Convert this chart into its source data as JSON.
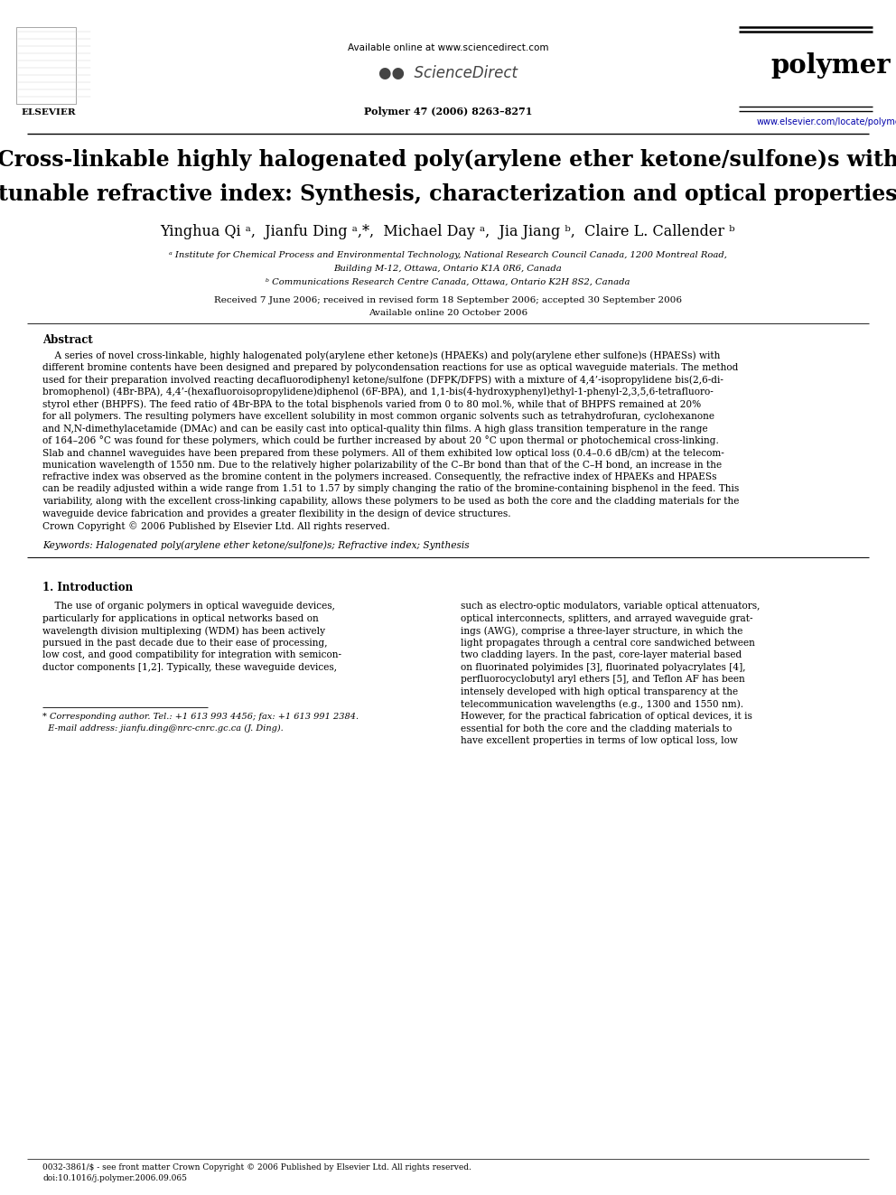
{
  "bg_color": "#ffffff",
  "fig_w": 9.92,
  "fig_h": 13.23,
  "dpi": 100,
  "header_available": "Available online at www.sciencedirect.com",
  "header_sciencedirect": "ScienceDirect",
  "header_journal": "polymer",
  "header_issue": "Polymer 47 (2006) 8263–8271",
  "header_url": "www.elsevier.com/locate/polymer",
  "elsevier_text": "ELSEVIER",
  "title_line1": "Cross-linkable highly halogenated poly(arylene ether ketone/sulfone)s with",
  "title_line2": "tunable refractive index: Synthesis, characterization and optical properties",
  "authors": "Yinghua Qi ᵃ,  Jianfu Ding ᵃ,*,  Michael Day ᵃ,  Jia Jiang ᵇ,  Claire L. Callender ᵇ",
  "affil_a": "ᵃ Institute for Chemical Process and Environmental Technology, National Research Council Canada, 1200 Montreal Road,",
  "affil_a2": "Building M-12, Ottawa, Ontario K1A 0R6, Canada",
  "affil_b": "ᵇ Communications Research Centre Canada, Ottawa, Ontario K2H 8S2, Canada",
  "dates1": "Received 7 June 2006; received in revised form 18 September 2006; accepted 30 September 2006",
  "dates2": "Available online 20 October 2006",
  "abstract_head": "Abstract",
  "abstract_indent": "    A series of novel cross-linkable, highly halogenated poly(arylene ether ketone)s (HPAEKs) and poly(arylene ether sulfone)s (HPAESs) with",
  "abstract_lines": [
    "different bromine contents have been designed and prepared by polycondensation reactions for use as optical waveguide materials. The method",
    "used for their preparation involved reacting decafluorodiphenyl ketone/sulfone (DFPK/DFPS) with a mixture of 4,4’-isopropylidene bis(2,6-di-",
    "bromophenol) (4Br-BPA), 4,4’-(hexafluoroisopropylidene)diphenol (6F-BPA), and 1,1-bis(4-hydroxyphenyl)ethyl-1-phenyl-2,3,5,6-tetrafluoro-",
    "styrol ether (BHPFS). The feed ratio of 4Br-BPA to the total bisphenols varied from 0 to 80 mol.%, while that of BHPFS remained at 20%",
    "for all polymers. The resulting polymers have excellent solubility in most common organic solvents such as tetrahydrofuran, cyclohexanone",
    "and N,N-dimethylacetamide (DMAc) and can be easily cast into optical-quality thin films. A high glass transition temperature in the range",
    "of 164–206 °C was found for these polymers, which could be further increased by about 20 °C upon thermal or photochemical cross-linking.",
    "Slab and channel waveguides have been prepared from these polymers. All of them exhibited low optical loss (0.4–0.6 dB/cm) at the telecom-",
    "munication wavelength of 1550 nm. Due to the relatively higher polarizability of the C–Br bond than that of the C–H bond, an increase in the",
    "refractive index was observed as the bromine content in the polymers increased. Consequently, the refractive index of HPAEKs and HPAESs",
    "can be readily adjusted within a wide range from 1.51 to 1.57 by simply changing the ratio of the bromine-containing bisphenol in the feed. This",
    "variability, along with the excellent cross-linking capability, allows these polymers to be used as both the core and the cladding materials for the",
    "waveguide device fabrication and provides a greater flexibility in the design of device structures.",
    "Crown Copyright © 2006 Published by Elsevier Ltd. All rights reserved."
  ],
  "keywords": "Keywords: Halogenated poly(arylene ether ketone/sulfone)s; Refractive index; Synthesis",
  "sec1_title": "1. Introduction",
  "sec1_col1_lines": [
    "    The use of organic polymers in optical waveguide devices,",
    "particularly for applications in optical networks based on",
    "wavelength division multiplexing (WDM) has been actively",
    "pursued in the past decade due to their ease of processing,",
    "low cost, and good compatibility for integration with semicon-",
    "ductor components [1,2]. Typically, these waveguide devices,"
  ],
  "sec1_col2_lines": [
    "such as electro-optic modulators, variable optical attenuators,",
    "optical interconnects, splitters, and arrayed waveguide grat-",
    "ings (AWG), comprise a three-layer structure, in which the",
    "light propagates through a central core sandwiched between",
    "two cladding layers. In the past, core-layer material based",
    "on fluorinated polyimides [3], fluorinated polyacrylates [4],",
    "perfluorocyclobutyl aryl ethers [5], and Teflon AF has been",
    "intensely developed with high optical transparency at the",
    "telecommunication wavelengths (e.g., 1300 and 1550 nm).",
    "However, for the practical fabrication of optical devices, it is",
    "essential for both the core and the cladding materials to",
    "have excellent properties in terms of low optical loss, low"
  ],
  "corr_line1": "* Corresponding author. Tel.: +1 613 993 4456; fax: +1 613 991 2384.",
  "corr_line2": "  E-mail address: jianfu.ding@nrc-cnrc.gc.ca (J. Ding).",
  "footer1": "0032-3861/$ - see front matter Crown Copyright © 2006 Published by Elsevier Ltd. All rights reserved.",
  "footer2": "doi:10.1016/j.polymer.2006.09.065",
  "color_blue": "#000080",
  "color_link": "#000099"
}
